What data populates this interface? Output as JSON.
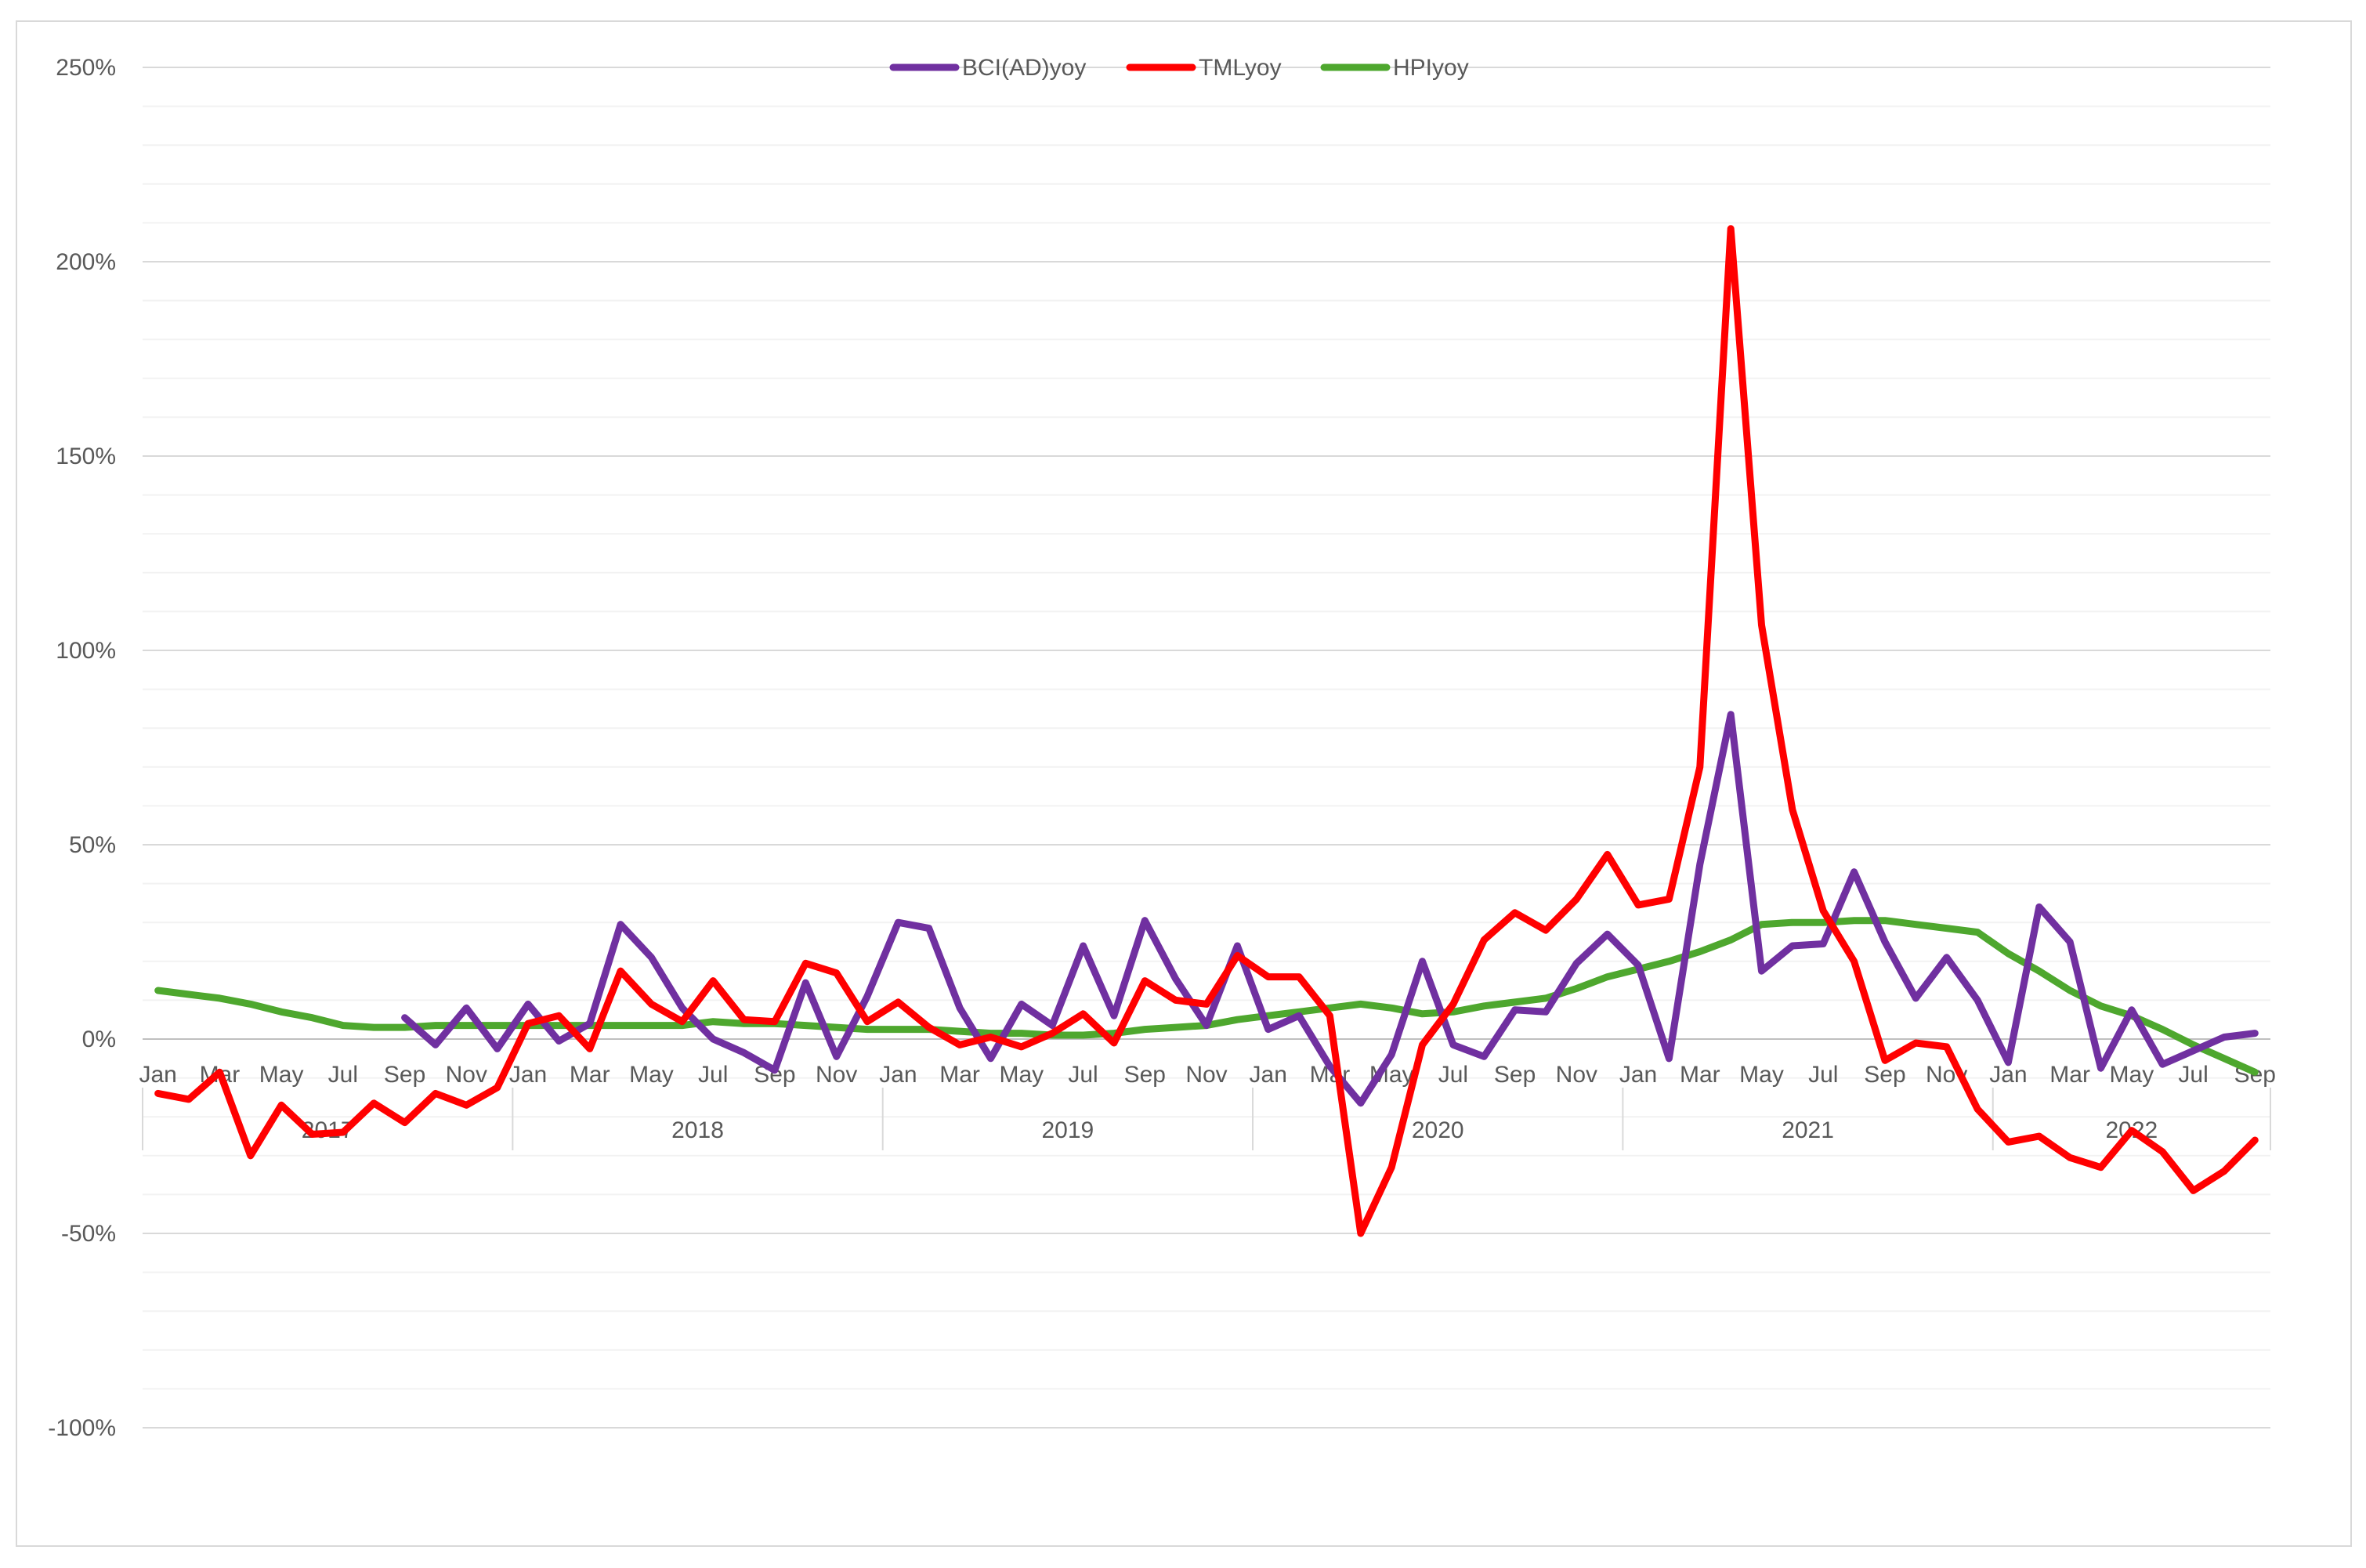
{
  "chart_data": {
    "type": "line",
    "y_unit": "%",
    "ylim": [
      -100,
      250
    ],
    "y_major_step": 50,
    "y_minor_step": 10,
    "grid": true,
    "legend_position": "top-center",
    "y_tick_labels": [
      "250%",
      "200%",
      "150%",
      "100%",
      "50%",
      "0%",
      "-50%",
      "-100%"
    ],
    "month_labels": [
      "Jan",
      "Mar",
      "May",
      "Jul",
      "Sep",
      "Nov",
      "Jan",
      "Mar",
      "May",
      "Jul",
      "Sep",
      "Nov",
      "Jan",
      "Mar",
      "May",
      "Jul",
      "Sep",
      "Nov",
      "Jan",
      "Mar",
      "May",
      "Jul",
      "Sep",
      "Nov",
      "Jan",
      "Mar",
      "May",
      "Jul",
      "Sep",
      "Nov",
      "Jan",
      "Mar",
      "May",
      "Jul",
      "Sep"
    ],
    "years": [
      "2017",
      "2018",
      "2019",
      "2020",
      "2021",
      "2022"
    ],
    "x": [
      "2017-01",
      "2017-02",
      "2017-03",
      "2017-04",
      "2017-05",
      "2017-06",
      "2017-07",
      "2017-08",
      "2017-09",
      "2017-10",
      "2017-11",
      "2017-12",
      "2018-01",
      "2018-02",
      "2018-03",
      "2018-04",
      "2018-05",
      "2018-06",
      "2018-07",
      "2018-08",
      "2018-09",
      "2018-10",
      "2018-11",
      "2018-12",
      "2019-01",
      "2019-02",
      "2019-03",
      "2019-04",
      "2019-05",
      "2019-06",
      "2019-07",
      "2019-08",
      "2019-09",
      "2019-10",
      "2019-11",
      "2019-12",
      "2020-01",
      "2020-02",
      "2020-03",
      "2020-04",
      "2020-05",
      "2020-06",
      "2020-07",
      "2020-08",
      "2020-09",
      "2020-10",
      "2020-11",
      "2020-12",
      "2021-01",
      "2021-02",
      "2021-03",
      "2021-04",
      "2021-05",
      "2021-06",
      "2021-07",
      "2021-08",
      "2021-09",
      "2021-10",
      "2021-11",
      "2021-12",
      "2022-01",
      "2022-02",
      "2022-03",
      "2022-04",
      "2022-05",
      "2022-06",
      "2022-07",
      "2022-08",
      "2022-09"
    ],
    "series": [
      {
        "name": "BCI(AD)yoy",
        "color": "#7030a0",
        "values": [
          null,
          null,
          null,
          null,
          null,
          null,
          null,
          null,
          5.5,
          -1.5,
          8,
          -2.5,
          9,
          -0.5,
          4,
          29.5,
          21,
          8,
          0,
          -3.5,
          -8,
          14.5,
          -4.5,
          11,
          30,
          28.5,
          8,
          -5,
          9,
          3.5,
          24,
          6,
          30.5,
          15.5,
          3.5,
          24,
          2.5,
          6,
          -7,
          -16.5,
          -4,
          20,
          -1.5,
          -4.5,
          7.5,
          7,
          19.5,
          27,
          19,
          -5,
          45,
          83.5,
          17.5,
          24,
          24.5,
          43,
          25,
          10.5,
          21,
          10,
          -6,
          34,
          25,
          -7.5,
          7.5,
          -6.5,
          -3,
          0.5,
          1.5
        ]
      },
      {
        "name": "TMLyoy",
        "color": "#ff0000",
        "values": [
          -14,
          -15.5,
          -8.5,
          -30,
          -17,
          -24.5,
          -24,
          -16.5,
          -21.5,
          -14,
          -17,
          -12.5,
          4,
          6,
          -2.5,
          17.5,
          9,
          4.5,
          15,
          5,
          4.5,
          19.5,
          17,
          4.5,
          9.5,
          3,
          -1.5,
          0.5,
          -2,
          1.5,
          6.5,
          -1,
          15,
          10,
          9,
          21.5,
          16,
          16,
          6,
          -50,
          -33,
          -1.5,
          9,
          25.5,
          32.5,
          28,
          36,
          47.5,
          34.5,
          36,
          70,
          208.5,
          106.5,
          59,
          33,
          20,
          -5.5,
          -1,
          -2,
          -18,
          -26.5,
          -25,
          -30.5,
          -33,
          -23.5,
          -29,
          -39,
          -34,
          -26
        ]
      },
      {
        "name": "HPIyoy",
        "color": "#4ea72e",
        "values": [
          12.5,
          11.5,
          10.5,
          9,
          7,
          5.5,
          3.5,
          3,
          3,
          3.5,
          3.5,
          3.5,
          3.5,
          3.5,
          3.5,
          3.5,
          3.5,
          3.5,
          4.5,
          4,
          4,
          3.5,
          3,
          2.5,
          2.5,
          2.5,
          2,
          1.5,
          1.5,
          1,
          1,
          1.5,
          2.5,
          3,
          3.5,
          5,
          6,
          7,
          8,
          9,
          8,
          6.5,
          7,
          8.5,
          9.5,
          10.5,
          13,
          16,
          18,
          20,
          22.5,
          25.5,
          29.5,
          30,
          30,
          30.5,
          30.5,
          29.5,
          28.5,
          27.5,
          22,
          17.5,
          12.5,
          8.5,
          6,
          2.5,
          -1.5,
          -5,
          -8.5
        ]
      }
    ]
  }
}
